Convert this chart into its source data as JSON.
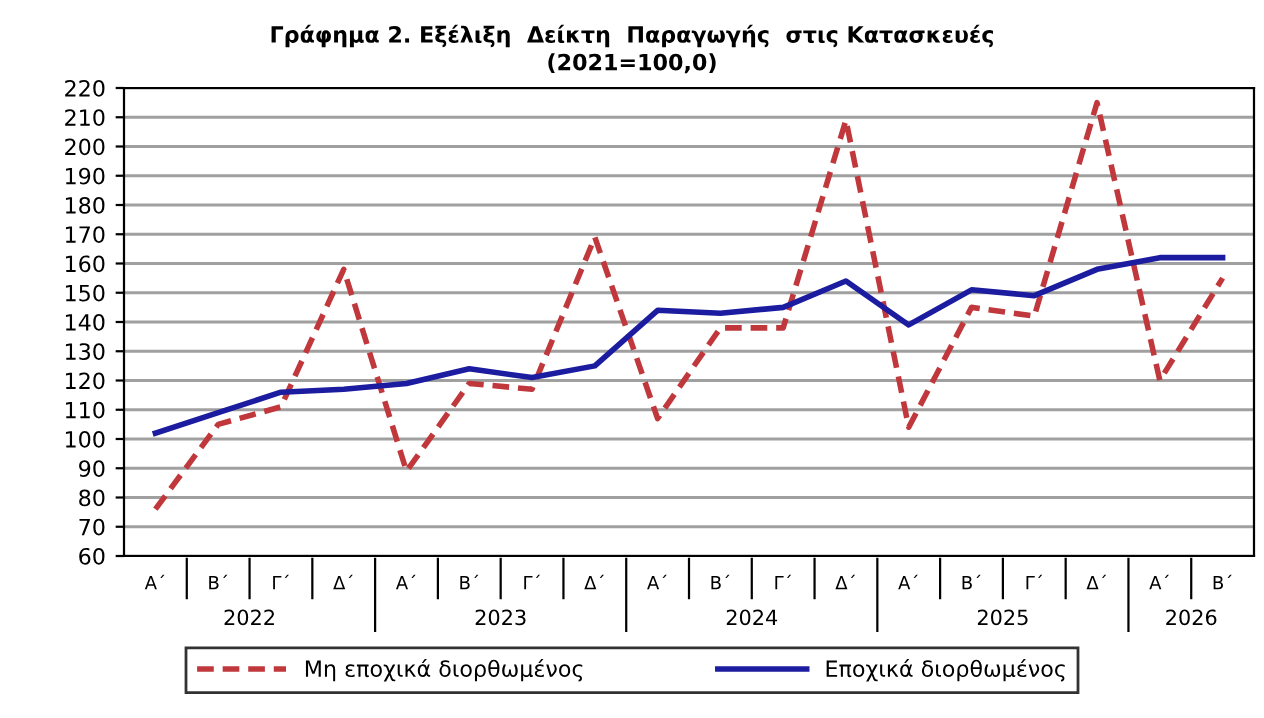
{
  "chart_data": {
    "type": "line",
    "title": "Γράφημα 2. Εξέλιξη  Δείκτη  Παραγωγής  στις Κατασκευές",
    "subtitle": "(2021=100,0)",
    "categories": [
      "Α΄",
      "Β΄",
      "Γ΄",
      "Δ΄",
      "Α΄",
      "Β΄",
      "Γ΄",
      "Δ΄",
      "Α΄",
      "Β΄",
      "Γ΄",
      "Δ΄",
      "Α΄",
      "Β΄",
      "Γ΄",
      "Δ΄",
      "Α΄",
      "Β΄"
    ],
    "annotations": [
      "2022",
      "2023",
      "2024",
      "2025",
      "2026"
    ],
    "series": [
      {
        "name": "Μη εποχικά διορθωμένος",
        "color": "#c0383c",
        "line_style": "dashed",
        "values": [
          76,
          105,
          111,
          158,
          89,
          119,
          117,
          169,
          107,
          138,
          138,
          209,
          104,
          145,
          142,
          215,
          120,
          155
        ]
      },
      {
        "name": "Εποχικά διορθωμένος",
        "color": "#1c1ca0",
        "line_style": "solid",
        "values": [
          102,
          109,
          116,
          117,
          119,
          124,
          121,
          125,
          144,
          143,
          145,
          154,
          139,
          151,
          149,
          158,
          162,
          162
        ]
      }
    ],
    "ylim": [
      60,
      220
    ],
    "yticks": [
      60,
      70,
      80,
      90,
      100,
      110,
      120,
      130,
      140,
      150,
      160,
      170,
      180,
      190,
      200,
      210,
      220
    ],
    "grid": "y",
    "legend": "bottom"
  }
}
